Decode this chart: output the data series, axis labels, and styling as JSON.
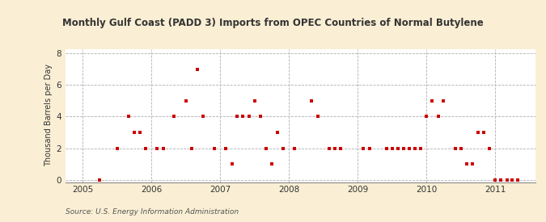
{
  "title": "Monthly Gulf Coast (PADD 3) Imports from OPEC Countries of Normal Butylene",
  "ylabel": "Thousand Barrels per Day",
  "source": "Source: U.S. Energy Information Administration",
  "background_color": "#faefd4",
  "plot_bg_color": "#ffffff",
  "marker_color": "#cc0000",
  "marker_size": 6,
  "xlim": [
    2004.75,
    2011.58
  ],
  "ylim": [
    -0.15,
    8.3
  ],
  "yticks": [
    0,
    2,
    4,
    6,
    8
  ],
  "xticks": [
    2005,
    2006,
    2007,
    2008,
    2009,
    2010,
    2011
  ],
  "data_points": [
    [
      2005.25,
      0.0
    ],
    [
      2005.5,
      2.0
    ],
    [
      2005.67,
      4.0
    ],
    [
      2005.75,
      3.0
    ],
    [
      2005.83,
      3.0
    ],
    [
      2005.92,
      2.0
    ],
    [
      2006.08,
      2.0
    ],
    [
      2006.17,
      2.0
    ],
    [
      2006.33,
      4.0
    ],
    [
      2006.5,
      5.0
    ],
    [
      2006.58,
      2.0
    ],
    [
      2006.67,
      7.0
    ],
    [
      2006.75,
      4.0
    ],
    [
      2006.92,
      2.0
    ],
    [
      2007.08,
      2.0
    ],
    [
      2007.17,
      1.0
    ],
    [
      2007.25,
      4.0
    ],
    [
      2007.33,
      4.0
    ],
    [
      2007.42,
      4.0
    ],
    [
      2007.5,
      5.0
    ],
    [
      2007.58,
      4.0
    ],
    [
      2007.67,
      2.0
    ],
    [
      2007.75,
      1.0
    ],
    [
      2007.83,
      3.0
    ],
    [
      2007.92,
      2.0
    ],
    [
      2008.08,
      2.0
    ],
    [
      2008.33,
      5.0
    ],
    [
      2008.42,
      4.0
    ],
    [
      2008.58,
      2.0
    ],
    [
      2008.67,
      2.0
    ],
    [
      2008.75,
      2.0
    ],
    [
      2009.08,
      2.0
    ],
    [
      2009.17,
      2.0
    ],
    [
      2009.42,
      2.0
    ],
    [
      2009.5,
      2.0
    ],
    [
      2009.58,
      2.0
    ],
    [
      2009.67,
      2.0
    ],
    [
      2009.75,
      2.0
    ],
    [
      2009.83,
      2.0
    ],
    [
      2009.92,
      2.0
    ],
    [
      2010.0,
      4.0
    ],
    [
      2010.08,
      5.0
    ],
    [
      2010.17,
      4.0
    ],
    [
      2010.25,
      5.0
    ],
    [
      2010.42,
      2.0
    ],
    [
      2010.5,
      2.0
    ],
    [
      2010.58,
      1.0
    ],
    [
      2010.67,
      1.0
    ],
    [
      2010.75,
      3.0
    ],
    [
      2010.83,
      3.0
    ],
    [
      2010.92,
      2.0
    ],
    [
      2011.0,
      0.0
    ],
    [
      2011.08,
      0.0
    ],
    [
      2011.17,
      0.0
    ],
    [
      2011.25,
      0.0
    ],
    [
      2011.33,
      0.0
    ]
  ]
}
